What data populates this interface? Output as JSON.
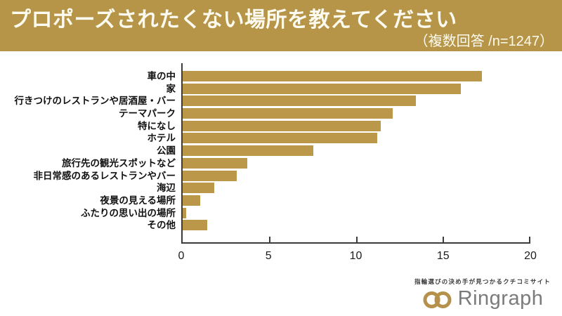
{
  "header": {
    "title": "プロポーズされたくない場所を教えてください",
    "subtitle": "（複数回答 /n=1247）"
  },
  "chart_data": {
    "type": "bar",
    "orientation": "horizontal",
    "title": "プロポーズされたくない場所を教えてください",
    "note": "複数回答 /n=1247",
    "categories": [
      "車の中",
      "家",
      "行きつけのレストランや居酒屋・バー",
      "テーマパーク",
      "特になし",
      "ホテル",
      "公園",
      "旅行先の観光スポットなど",
      "非日常感のあるレストランやバー",
      "海辺",
      "夜景の見える場所",
      "ふたりの思い出の場所",
      "その他"
    ],
    "values": [
      17.2,
      16.0,
      13.4,
      12.1,
      11.4,
      11.2,
      7.5,
      3.7,
      3.1,
      1.8,
      1.0,
      0.2,
      1.4
    ],
    "xlim": [
      0,
      20
    ],
    "xticks": [
      0,
      5,
      10,
      15,
      20
    ],
    "grid": false,
    "legend": false,
    "bar_color": "#bb9849"
  },
  "footer": {
    "tagline": "指輪選びの決め手が見つかるクチコミサイト",
    "brand": "Ringraph"
  },
  "colors": {
    "header_bg": "#b69549",
    "header_text": "#fdfbef",
    "bar": "#bb9849",
    "axis": "#3c3c3c",
    "label_text": "#111111",
    "logo_gray": "#7b7b7b",
    "logo_gold": "#b5914c"
  }
}
